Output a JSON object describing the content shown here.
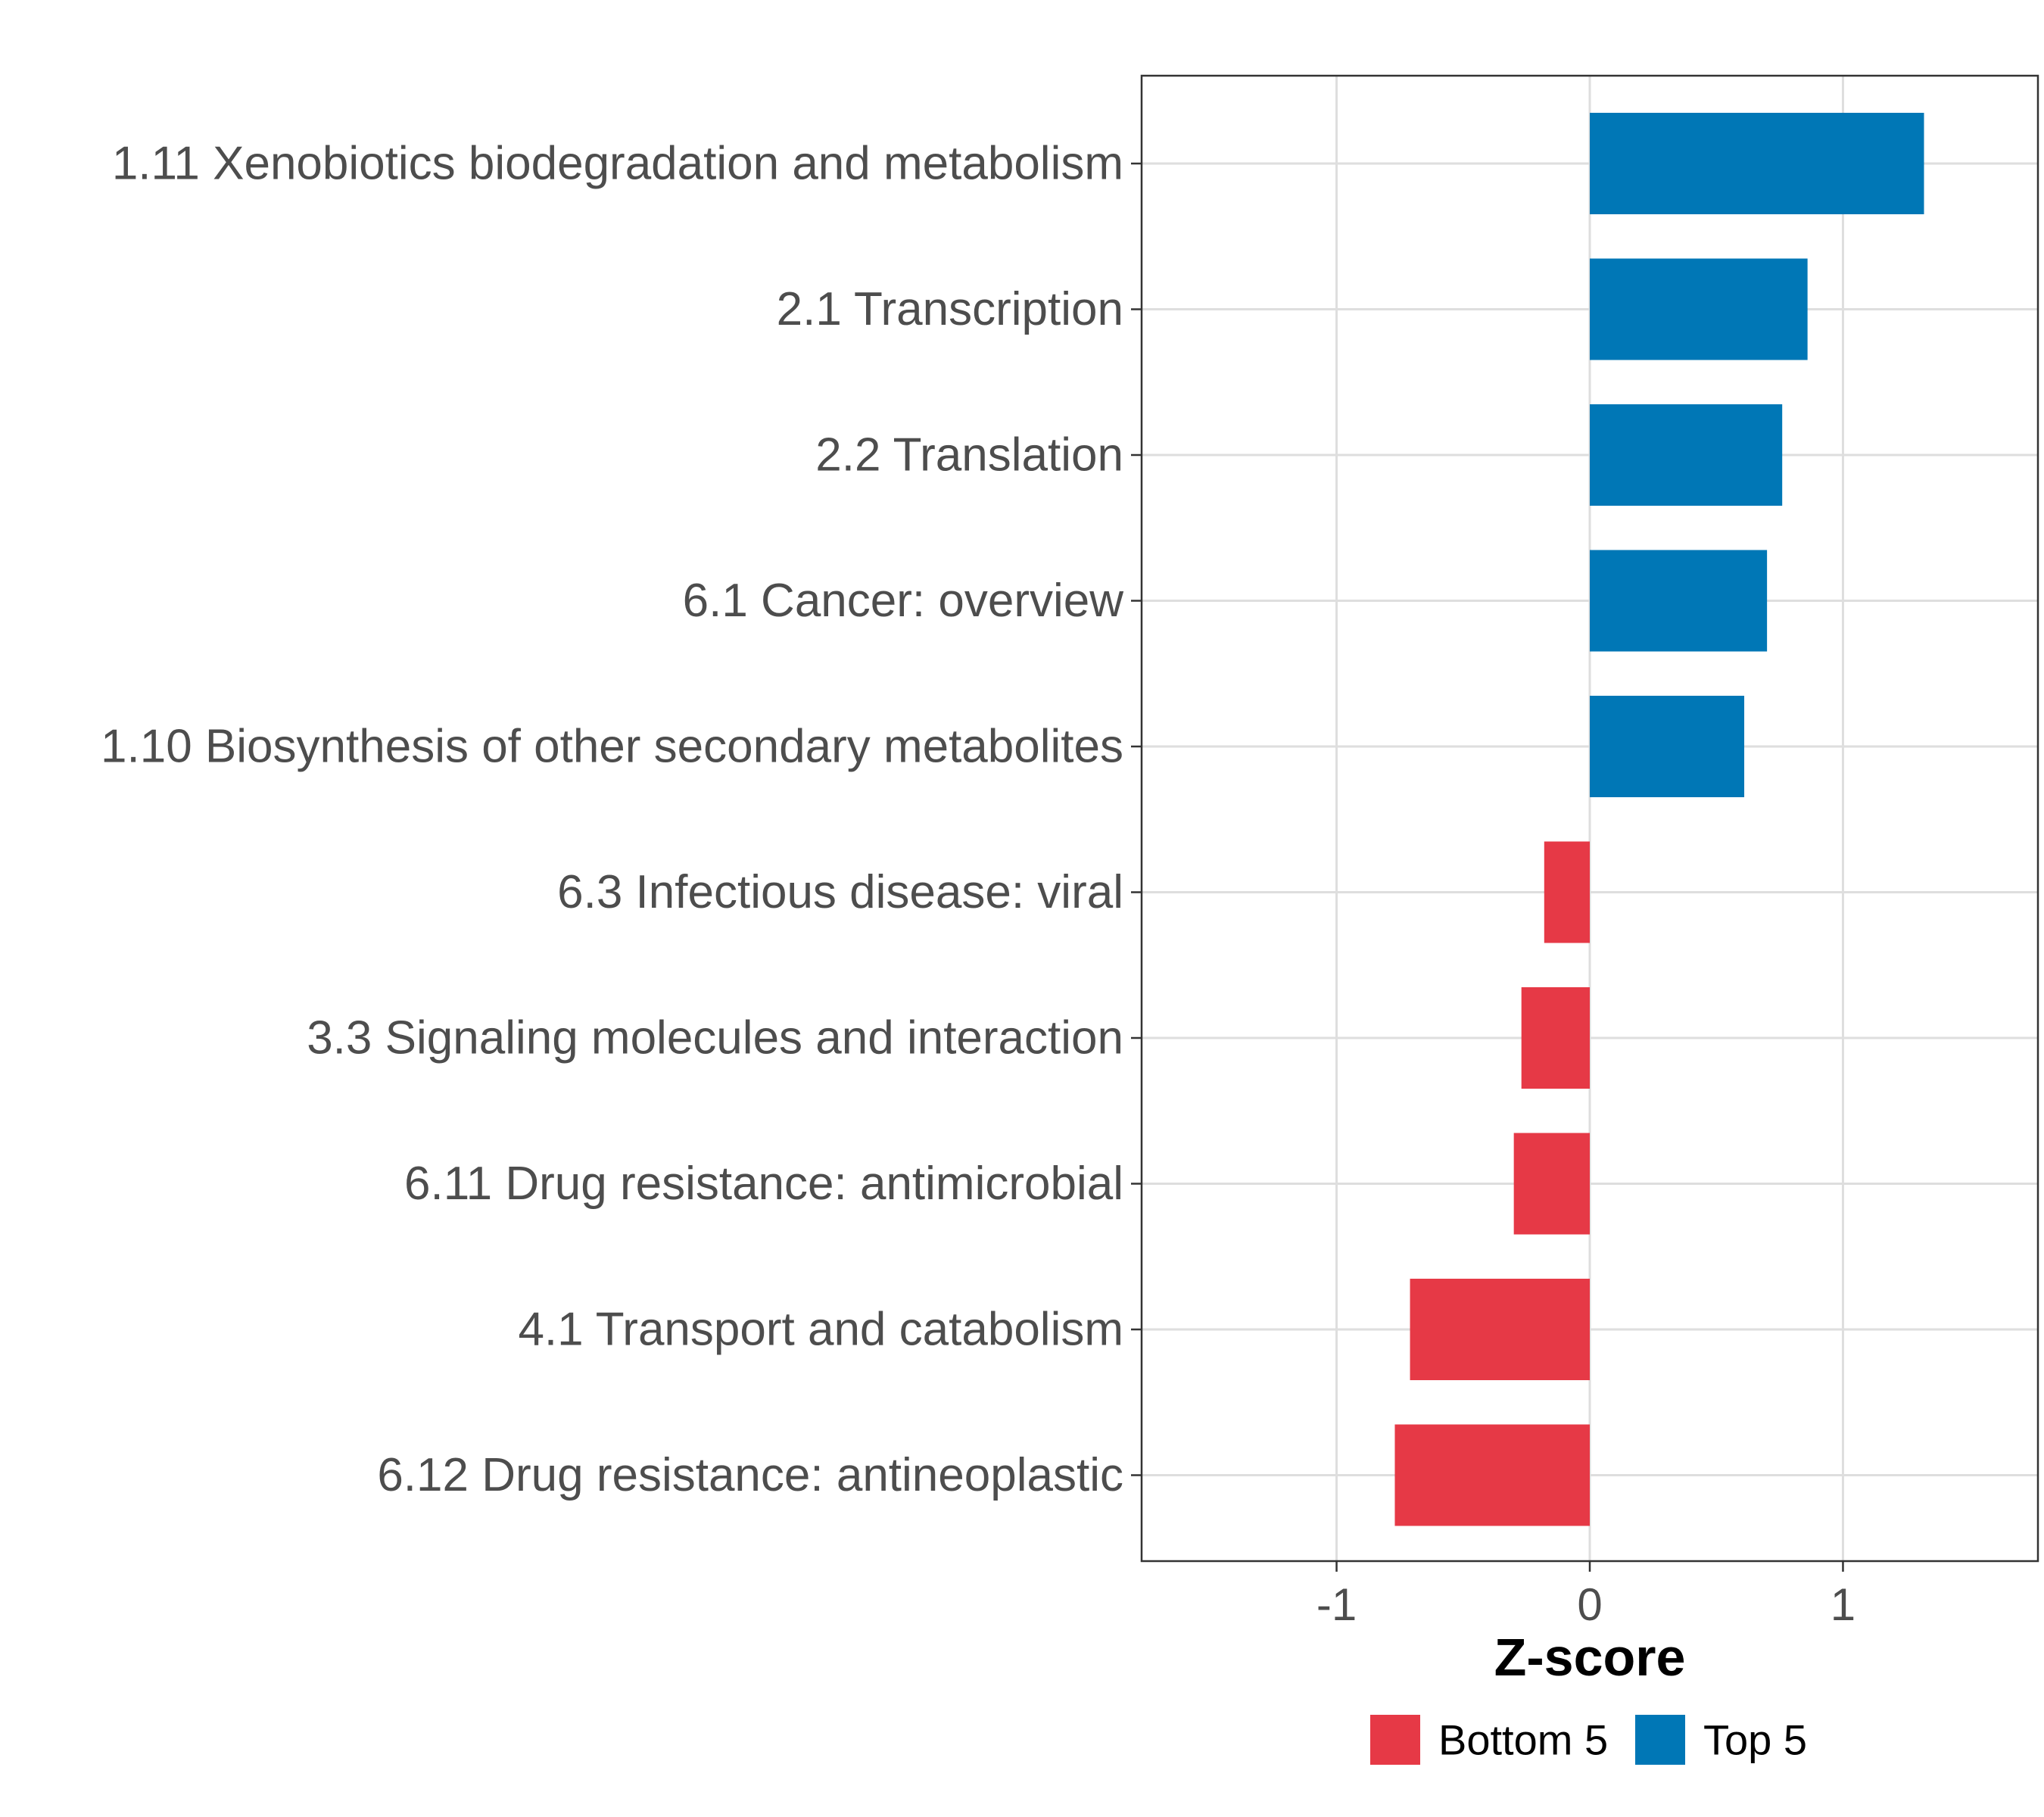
{
  "chart_data": {
    "type": "bar",
    "orientation": "horizontal",
    "title": "",
    "xlabel": "Z-score",
    "ylabel": "",
    "xlim": [
      -1.77,
      1.77
    ],
    "xticks": [
      -1,
      0,
      1
    ],
    "xtick_labels": [
      "-1",
      "0",
      "1"
    ],
    "grid": true,
    "legend_position": "bottom",
    "categories": [
      "1.11 Xenobiotics biodegradation and metabolism",
      "2.1 Transcription",
      "2.2 Translation",
      "6.1 Cancer: overview",
      "1.10 Biosynthesis of other secondary metabolites",
      "6.3 Infectious disease: viral",
      "3.3 Signaling molecules and interaction",
      "6.11 Drug resistance: antimicrobial",
      "4.1 Transport and catabolism",
      "6.12 Drug resistance: antineoplastic"
    ],
    "values": [
      1.32,
      0.86,
      0.76,
      0.7,
      0.61,
      -0.18,
      -0.27,
      -0.3,
      -0.71,
      -0.77
    ],
    "groups": [
      "Top 5",
      "Top 5",
      "Top 5",
      "Top 5",
      "Top 5",
      "Bottom 5",
      "Bottom 5",
      "Bottom 5",
      "Bottom 5",
      "Bottom 5"
    ],
    "legend": [
      {
        "name": "Bottom 5",
        "color": "#e63946"
      },
      {
        "name": "Top 5",
        "color": "#0077b6"
      }
    ]
  }
}
